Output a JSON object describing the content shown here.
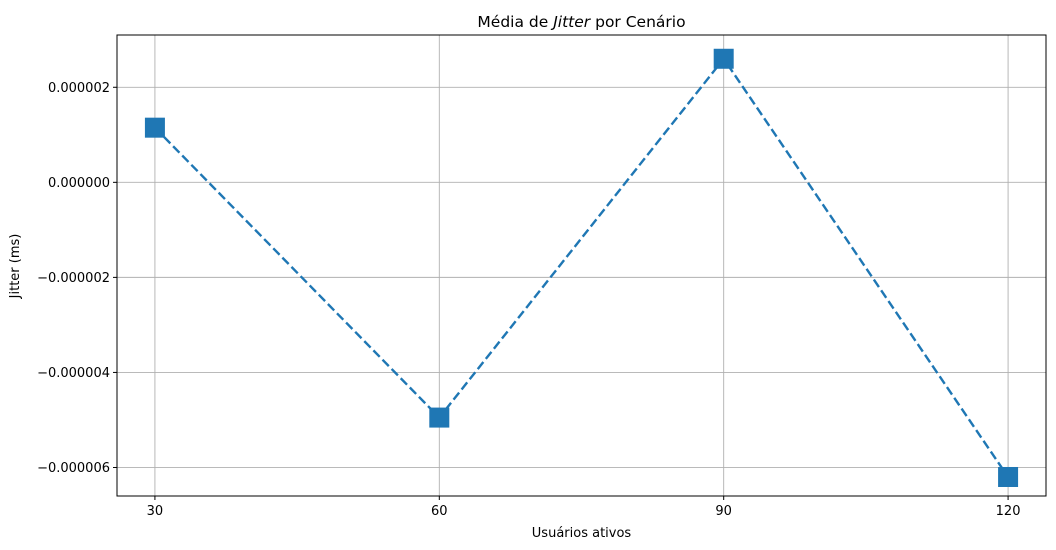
{
  "chart_data": {
    "type": "line",
    "title_parts": [
      "Média de ",
      "Jitter",
      " por Cenário"
    ],
    "xlabel": "Usuários ativos",
    "ylabel": "Jitter (ms)",
    "x": [
      30,
      60,
      90,
      120
    ],
    "x_tick_labels": [
      "30",
      "60",
      "90",
      "120"
    ],
    "series": [
      {
        "name": "Jitter",
        "values": [
          1.15e-06,
          -4.95e-06,
          2.6e-06,
          -6.2e-06
        ],
        "color": "#1f77b4",
        "line_style": "dashed",
        "marker": "square"
      }
    ],
    "yticks": [
      2e-06,
      0.0,
      -2e-06,
      -4e-06,
      -6e-06
    ],
    "y_tick_labels": [
      "0.000002",
      "0.000000",
      "−0.000002",
      "−0.000004",
      "−0.000006"
    ],
    "xlim": [
      26,
      124
    ],
    "ylim": [
      -6.6e-06,
      3.1e-06
    ],
    "grid": true
  }
}
